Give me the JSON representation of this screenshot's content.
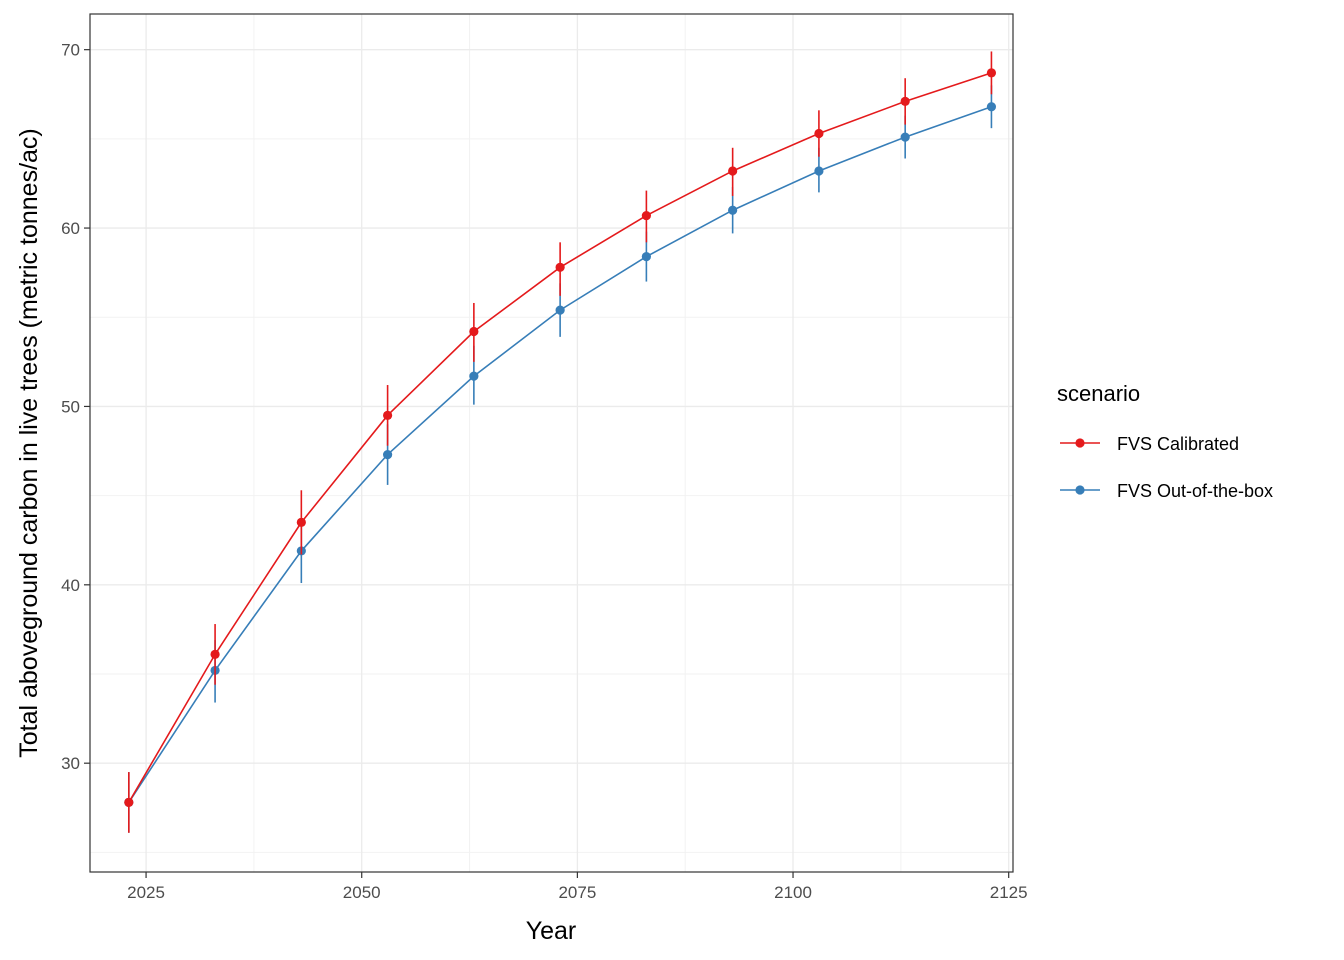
{
  "chart_data": {
    "type": "line",
    "x": [
      2023,
      2033,
      2043,
      2053,
      2063,
      2073,
      2083,
      2093,
      2103,
      2113,
      2123
    ],
    "series": [
      {
        "name": "FVS Calibrated",
        "color": "#e41a1c",
        "values": [
          27.8,
          36.1,
          43.5,
          49.5,
          54.2,
          57.8,
          60.7,
          63.2,
          65.3,
          67.1,
          68.7
        ],
        "error_low": [
          26.1,
          34.4,
          41.7,
          47.8,
          52.5,
          56.2,
          59.2,
          61.8,
          64.0,
          65.8,
          67.5
        ],
        "error_high": [
          29.5,
          37.8,
          45.3,
          51.2,
          55.8,
          59.2,
          62.1,
          64.5,
          66.6,
          68.4,
          69.9
        ]
      },
      {
        "name": "FVS Out-of-the-box",
        "color": "#377eb8",
        "values": [
          27.8,
          35.2,
          41.9,
          47.3,
          51.7,
          55.4,
          58.4,
          61.0,
          63.2,
          65.1,
          66.8
        ],
        "error_low": [
          26.1,
          33.4,
          40.1,
          45.6,
          50.1,
          53.9,
          57.0,
          59.7,
          62.0,
          63.9,
          65.6
        ],
        "error_high": [
          29.5,
          36.9,
          43.7,
          49.0,
          53.4,
          56.9,
          59.8,
          62.3,
          64.5,
          66.3,
          68.0
        ]
      }
    ],
    "xlabel": "Year",
    "ylabel": "Total aboveground carbon in live trees (metric tonnes/ac)",
    "xlim": [
      2018.5,
      2125.5
    ],
    "ylim": [
      23.9,
      72.0
    ],
    "xticks": [
      2025,
      2050,
      2075,
      2100,
      2125
    ],
    "yticks": [
      30,
      40,
      50,
      60,
      70
    ],
    "legend_title": "scenario",
    "legend_position": "right",
    "grid": true
  }
}
